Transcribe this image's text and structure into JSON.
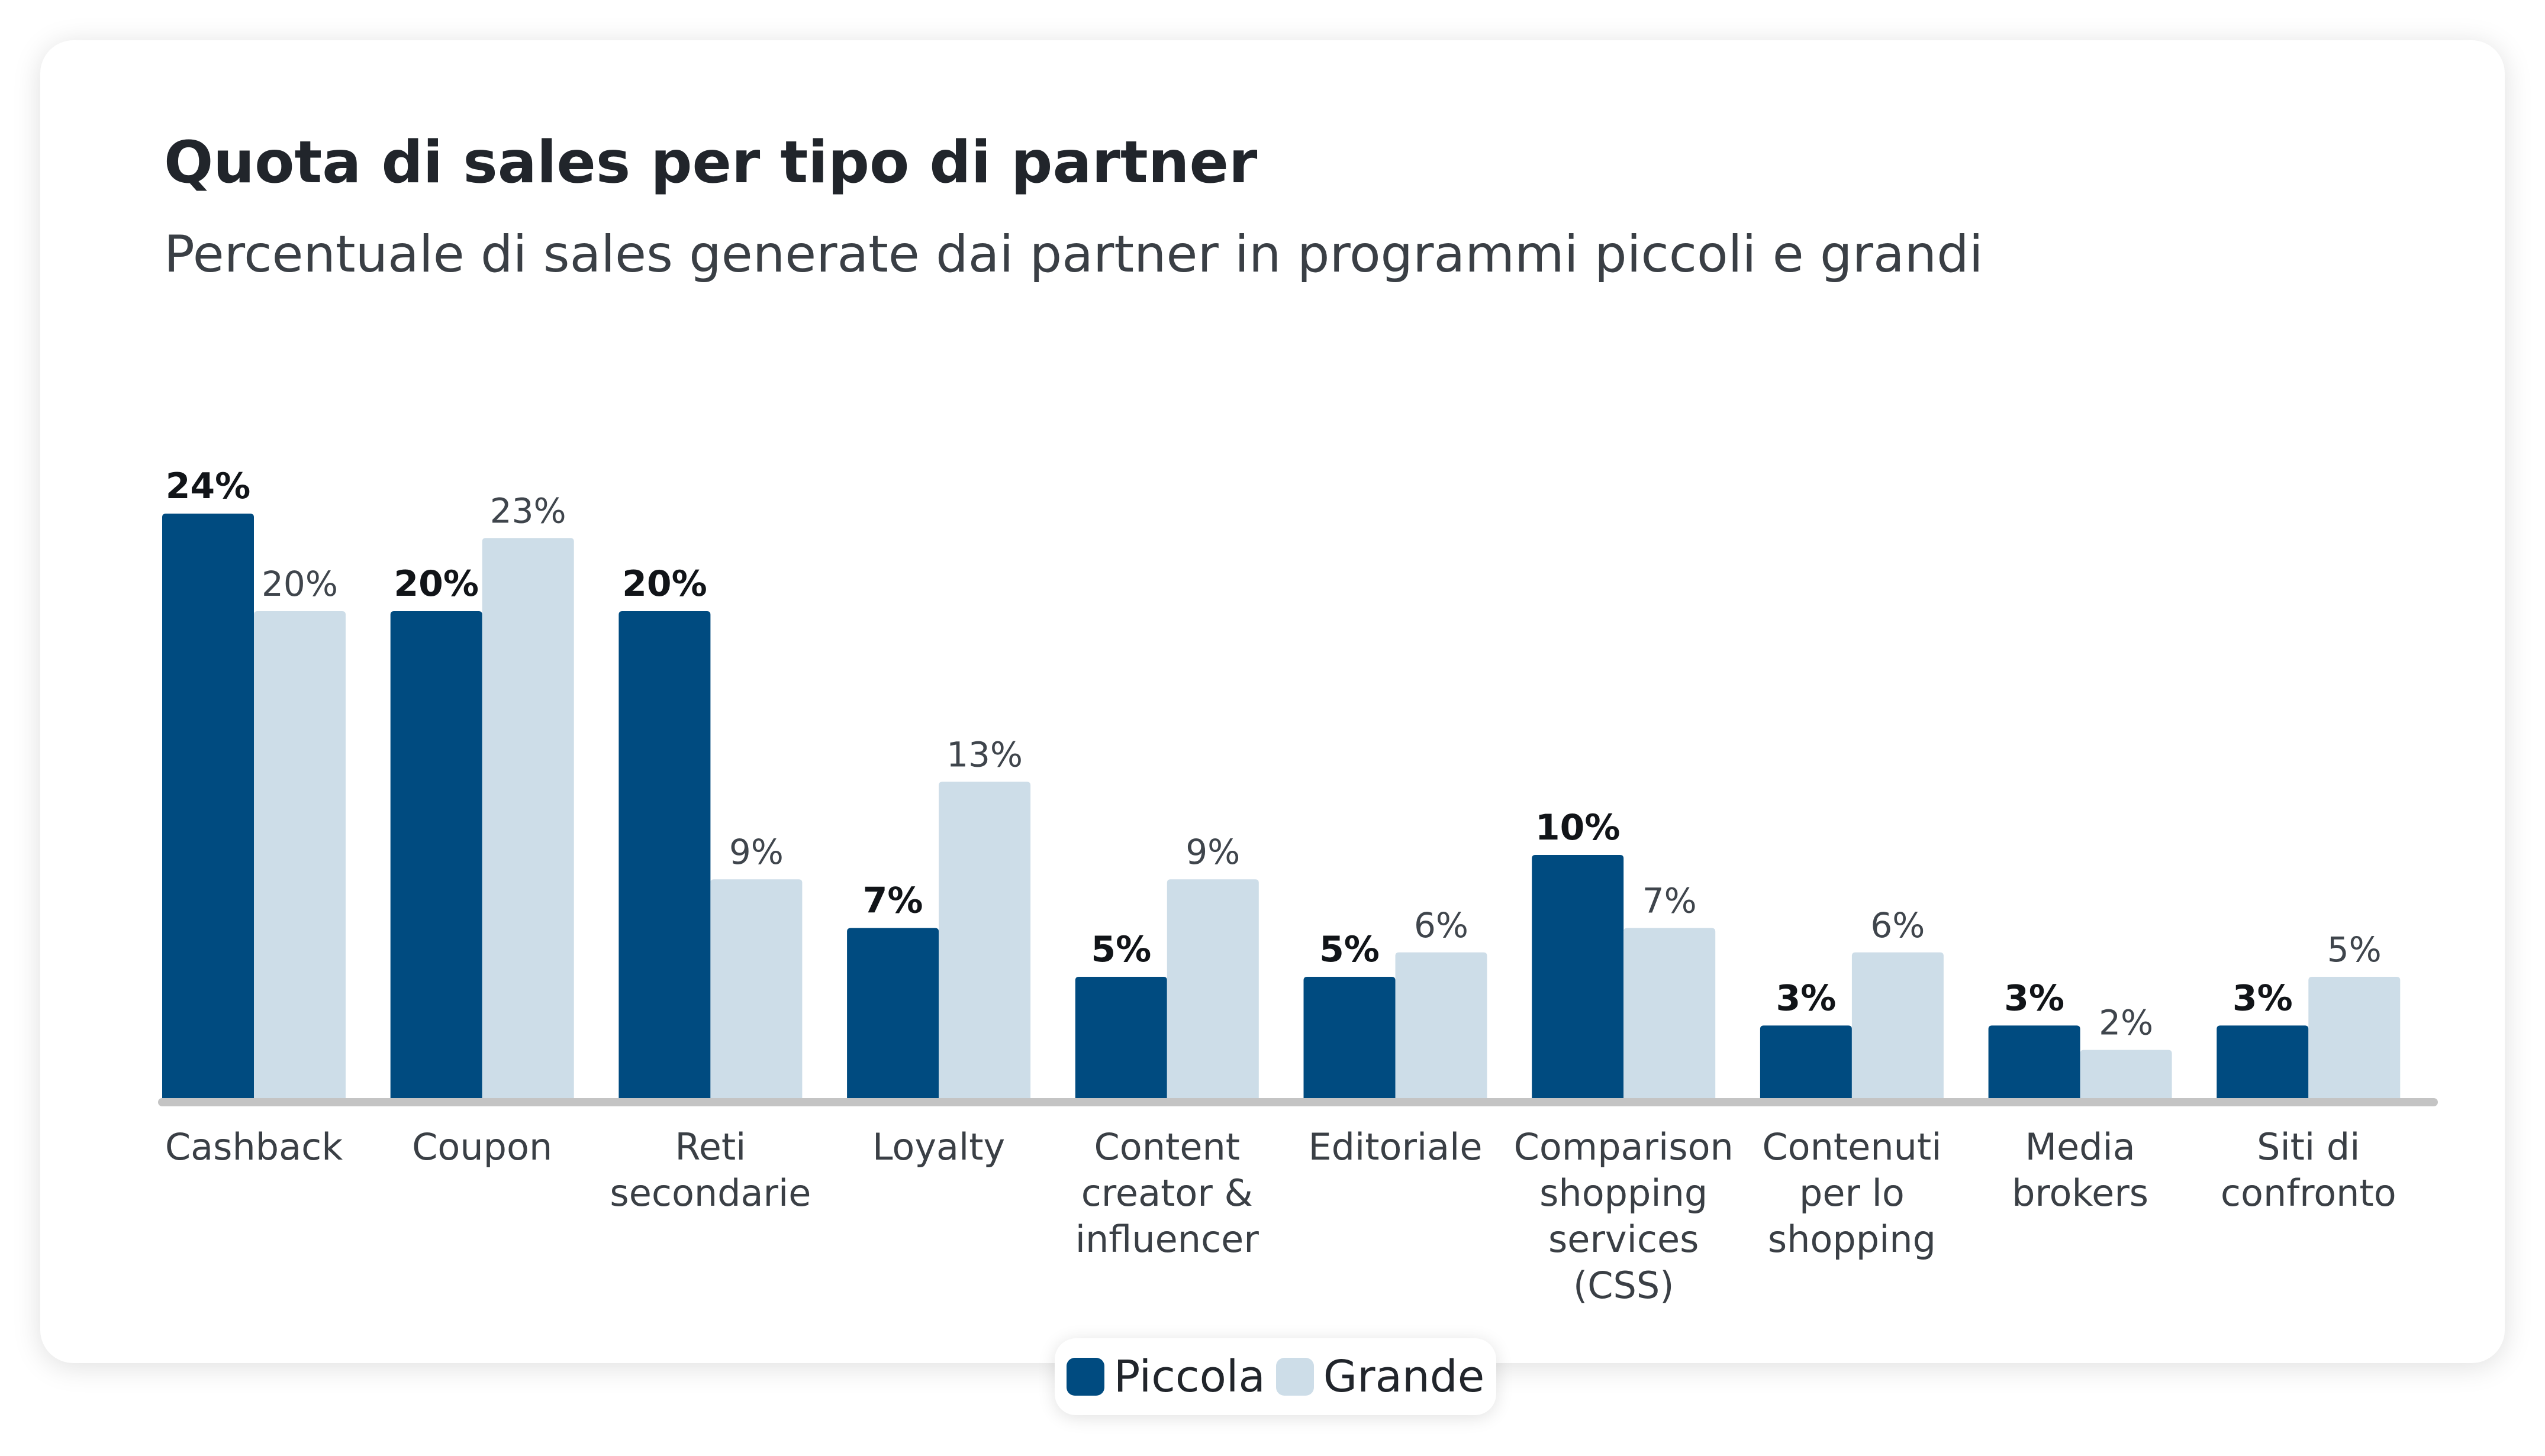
{
  "header": {
    "title": "Quota di sales per tipo di partner",
    "subtitle": "Percentuale di sales generate dai partner in programmi piccoli e grandi"
  },
  "legend": {
    "items": [
      {
        "label": "Piccola",
        "color": "#004b80"
      },
      {
        "label": "Grande",
        "color": "#cddde8"
      }
    ]
  },
  "chart_data": {
    "type": "bar",
    "title": "Quota di sales per tipo di partner",
    "subtitle": "Percentuale di sales generate dai partner in programmi piccoli e grandi",
    "categories": [
      [
        "Cashback"
      ],
      [
        "Coupon"
      ],
      [
        "Reti",
        "secondarie"
      ],
      [
        "Loyalty"
      ],
      [
        "Content",
        "creator &",
        "influencer"
      ],
      [
        "Editoriale"
      ],
      [
        "Comparison",
        "shopping",
        "services",
        "(CSS)"
      ],
      [
        "Contenuti",
        "per lo",
        "shopping"
      ],
      [
        "Media",
        "brokers"
      ],
      [
        "Siti di",
        "confronto"
      ]
    ],
    "series": [
      {
        "name": "Piccola",
        "color": "#004b80",
        "values": [
          24,
          20,
          20,
          7,
          5,
          5,
          10,
          3,
          3,
          3
        ]
      },
      {
        "name": "Grande",
        "color": "#cddde8",
        "values": [
          20,
          23,
          9,
          13,
          9,
          6,
          7,
          6,
          2,
          5
        ]
      }
    ],
    "value_suffix": "%",
    "ylim": [
      0,
      24
    ],
    "xlabel": "",
    "ylabel": "",
    "grid": false,
    "legend_position": "bottom-center",
    "baseline_color": "#c4c4c4"
  }
}
